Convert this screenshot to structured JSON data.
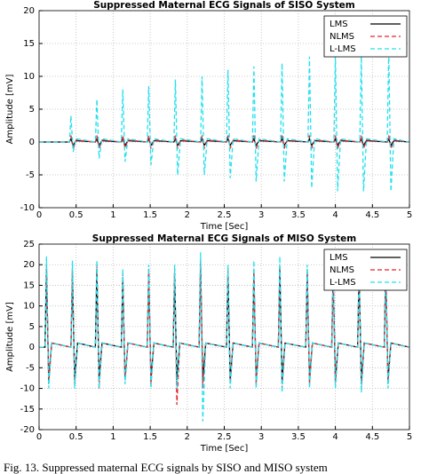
{
  "chart_data": [
    {
      "type": "line",
      "title": "Suppressed Maternal ECG Signals of SISO System",
      "xlabel": "Time [Sec]",
      "ylabel": "Amplitude [mV]",
      "xlim": [
        0,
        5
      ],
      "xticks": [
        0,
        0.5,
        1,
        1.5,
        2,
        2.5,
        3,
        3.5,
        4,
        4.5,
        5
      ],
      "ylim": [
        -10,
        20
      ],
      "yticks": [
        -10,
        -5,
        0,
        5,
        10,
        15,
        20
      ],
      "grid": true,
      "legend": "upper right",
      "x": [
        0,
        0.41,
        0.43,
        0.46,
        0.5,
        0.76,
        0.78,
        0.81,
        0.85,
        1.11,
        1.13,
        1.16,
        1.2,
        1.46,
        1.48,
        1.51,
        1.55,
        1.82,
        1.84,
        1.87,
        1.91,
        2.18,
        2.2,
        2.23,
        2.27,
        2.53,
        2.55,
        2.58,
        2.62,
        2.88,
        2.9,
        2.93,
        2.97,
        3.26,
        3.28,
        3.31,
        3.35,
        3.63,
        3.65,
        3.68,
        3.72,
        3.98,
        4,
        4.03,
        4.07,
        4.33,
        4.35,
        4.38,
        4.42,
        4.7,
        4.72,
        4.75,
        4.79,
        5
      ],
      "series": [
        {
          "name": "LMS",
          "color": "#000000",
          "dash": "solid",
          "values": [
            0,
            0,
            0.5,
            -0.5,
            0.2,
            0,
            0.5,
            -0.5,
            0.2,
            0,
            0.5,
            -0.5,
            0.2,
            0,
            0.5,
            -0.5,
            0.2,
            0,
            0.5,
            -0.5,
            0.2,
            0,
            0.5,
            -0.5,
            0.2,
            0,
            0.5,
            -0.5,
            0.2,
            0,
            0.5,
            -0.5,
            0.2,
            0,
            0.5,
            -0.5,
            0.2,
            0,
            0.5,
            -0.5,
            0.2,
            0,
            0.5,
            -0.5,
            0.2,
            0,
            0.5,
            -0.5,
            0.2,
            0,
            0.5,
            -0.5,
            0.2,
            0
          ]
        },
        {
          "name": "NLMS",
          "color": "#e8242c",
          "dash": "dashed",
          "values": [
            0,
            0,
            1,
            -1,
            0.3,
            0,
            1,
            -1,
            0.3,
            0,
            1,
            -1,
            0.3,
            0,
            1,
            -1,
            0.3,
            0,
            1,
            -1,
            0.3,
            0,
            1,
            -1,
            0.3,
            0,
            1,
            -1,
            0.3,
            0,
            1,
            -1,
            0.3,
            0,
            1,
            -1,
            0.3,
            0,
            1,
            -1,
            0.3,
            0,
            1,
            -1,
            0.3,
            0,
            1,
            -1,
            0.3,
            0,
            1,
            -1,
            0.3,
            0
          ]
        },
        {
          "name": "L-LMS",
          "color": "#22e0ee",
          "dash": "dashed",
          "values": [
            0,
            0,
            4,
            -1.5,
            0.5,
            0,
            6.5,
            -2.5,
            0.5,
            0,
            8,
            -3,
            0.5,
            0,
            8.5,
            -3.5,
            0.5,
            0,
            9.5,
            -5,
            0.5,
            0,
            10,
            -5,
            0.5,
            0,
            11,
            -5.5,
            0.5,
            0,
            11.5,
            -6,
            0.5,
            0,
            12,
            -6,
            0.5,
            0,
            13,
            -7,
            0.5,
            0,
            13.5,
            -7.5,
            0.5,
            0,
            13,
            -7.5,
            0.5,
            0,
            14,
            -7.5,
            0.5,
            0
          ]
        }
      ]
    },
    {
      "type": "line",
      "title": "Suppressed Maternal ECG Signals of MISO System",
      "xlabel": "Time [Sec]",
      "ylabel": "Amplitude [mV]",
      "xlim": [
        0,
        5
      ],
      "xticks": [
        0,
        0.5,
        1,
        1.5,
        2,
        2.5,
        3,
        3.5,
        4,
        4.5,
        5
      ],
      "ylim": [
        -20,
        25
      ],
      "yticks": [
        -20,
        -15,
        -10,
        -5,
        0,
        5,
        10,
        15,
        20,
        25
      ],
      "grid": true,
      "legend": "upper right",
      "x": [
        0,
        0.08,
        0.1,
        0.13,
        0.17,
        0.43,
        0.45,
        0.48,
        0.52,
        0.76,
        0.78,
        0.81,
        0.85,
        1.11,
        1.13,
        1.16,
        1.2,
        1.46,
        1.48,
        1.51,
        1.55,
        1.81,
        1.83,
        1.86,
        1.9,
        2.16,
        2.18,
        2.21,
        2.25,
        2.53,
        2.55,
        2.58,
        2.62,
        2.88,
        2.9,
        2.93,
        2.97,
        3.23,
        3.25,
        3.28,
        3.32,
        3.6,
        3.62,
        3.65,
        3.69,
        3.95,
        3.97,
        4,
        4.04,
        4.3,
        4.32,
        4.35,
        4.39,
        4.66,
        4.68,
        4.71,
        4.75,
        5
      ],
      "series": [
        {
          "name": "LMS",
          "color": "#000000",
          "dash": "solid",
          "values": [
            0,
            0,
            19,
            -8,
            1,
            0,
            18,
            -8,
            1,
            0,
            19,
            -8,
            1,
            0,
            17,
            -8,
            1,
            0,
            18,
            -8,
            1,
            0,
            18,
            -8,
            1,
            0,
            20,
            -8,
            1,
            0,
            18,
            -8,
            1,
            0,
            18,
            -8,
            1,
            0,
            19,
            -8,
            1,
            0,
            18,
            -8,
            1,
            0,
            18,
            -8,
            1,
            0,
            18,
            -8,
            1,
            0,
            19,
            -8,
            1,
            0
          ]
        },
        {
          "name": "NLMS",
          "color": "#e8242c",
          "dash": "dashed",
          "values": [
            0,
            0,
            20,
            -9,
            1,
            0,
            19,
            -9,
            1,
            0,
            20,
            -10,
            1,
            0,
            18,
            -8,
            1,
            0,
            19,
            -9,
            1,
            0,
            19,
            -14,
            1,
            0,
            21,
            -10,
            1,
            0,
            19,
            -9,
            1,
            0,
            19,
            -9,
            1,
            0,
            20,
            -10,
            1,
            0,
            19,
            -9,
            1,
            0,
            19,
            -9,
            1,
            0,
            19,
            -10,
            1,
            0,
            20,
            -9,
            1,
            0
          ]
        },
        {
          "name": "L-LMS",
          "color": "#22e0ee",
          "dash": "dashed",
          "values": [
            0,
            0,
            22,
            -10,
            1,
            0,
            21,
            -10,
            1,
            0,
            21,
            -10,
            1,
            0,
            19,
            -9,
            1,
            0,
            20,
            -10,
            1,
            0,
            20,
            -10,
            1,
            0,
            23,
            -18,
            1,
            0,
            20,
            -10,
            1,
            0,
            21,
            -10,
            1,
            0,
            22,
            -11,
            1,
            0,
            20,
            -10,
            1,
            0,
            20,
            -10,
            1,
            0,
            21,
            -11,
            1,
            0,
            22,
            -10,
            1,
            0
          ]
        }
      ]
    }
  ],
  "caption": "Fig. 13.    Suppressed maternal ECG signals by SISO and MISO system"
}
